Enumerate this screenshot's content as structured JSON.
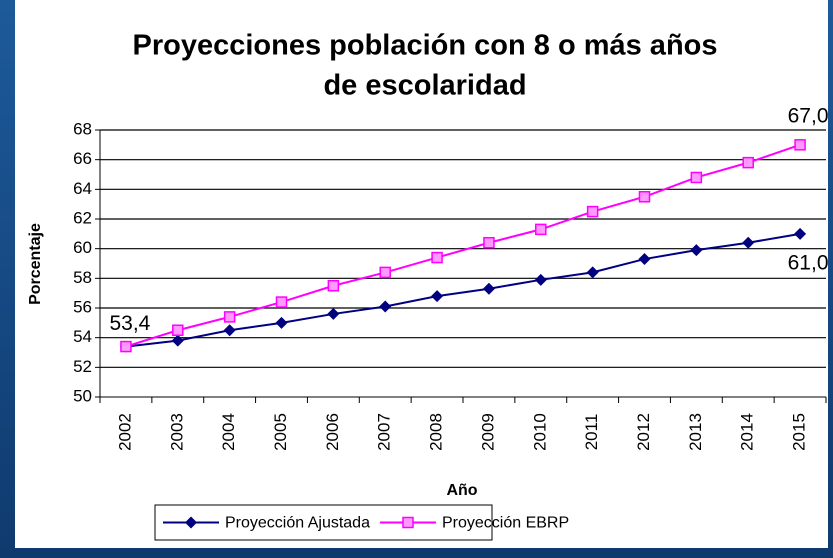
{
  "chart_data": {
    "type": "line",
    "title": [
      "Proyecciones población con 8 o más años",
      "de escolaridad"
    ],
    "y_label": "Porcentaje",
    "x_label": "Año",
    "categories": [
      "2002",
      "2003",
      "2004",
      "2005",
      "2006",
      "2007",
      "2008",
      "2009",
      "2010",
      "2011",
      "2012",
      "2013",
      "2014",
      "2015"
    ],
    "series": [
      {
        "name": "Proyección Ajustada",
        "color": "#000080",
        "marker": "diamond",
        "values": [
          53.4,
          53.8,
          54.5,
          55.0,
          55.6,
          56.1,
          56.8,
          57.3,
          57.9,
          58.4,
          59.3,
          59.9,
          60.4,
          61.0
        ],
        "value_labels": [
          "53,4",
          null,
          null,
          null,
          null,
          null,
          null,
          null,
          null,
          null,
          null,
          null,
          null,
          "61,0"
        ]
      },
      {
        "name": "Proyección EBRP",
        "color": "#ff00ff",
        "marker": "square",
        "values": [
          53.4,
          54.5,
          55.4,
          56.4,
          57.5,
          58.4,
          59.4,
          60.4,
          61.3,
          62.5,
          63.5,
          64.8,
          65.8,
          67.0
        ],
        "value_labels": [
          null,
          null,
          null,
          null,
          null,
          null,
          null,
          null,
          null,
          null,
          null,
          null,
          null,
          "67,0"
        ]
      }
    ],
    "ylim": [
      50,
      68
    ],
    "yticks": [
      50,
      52,
      54,
      56,
      58,
      60,
      62,
      64,
      66,
      68
    ],
    "grid": true,
    "legend": "bottom"
  }
}
